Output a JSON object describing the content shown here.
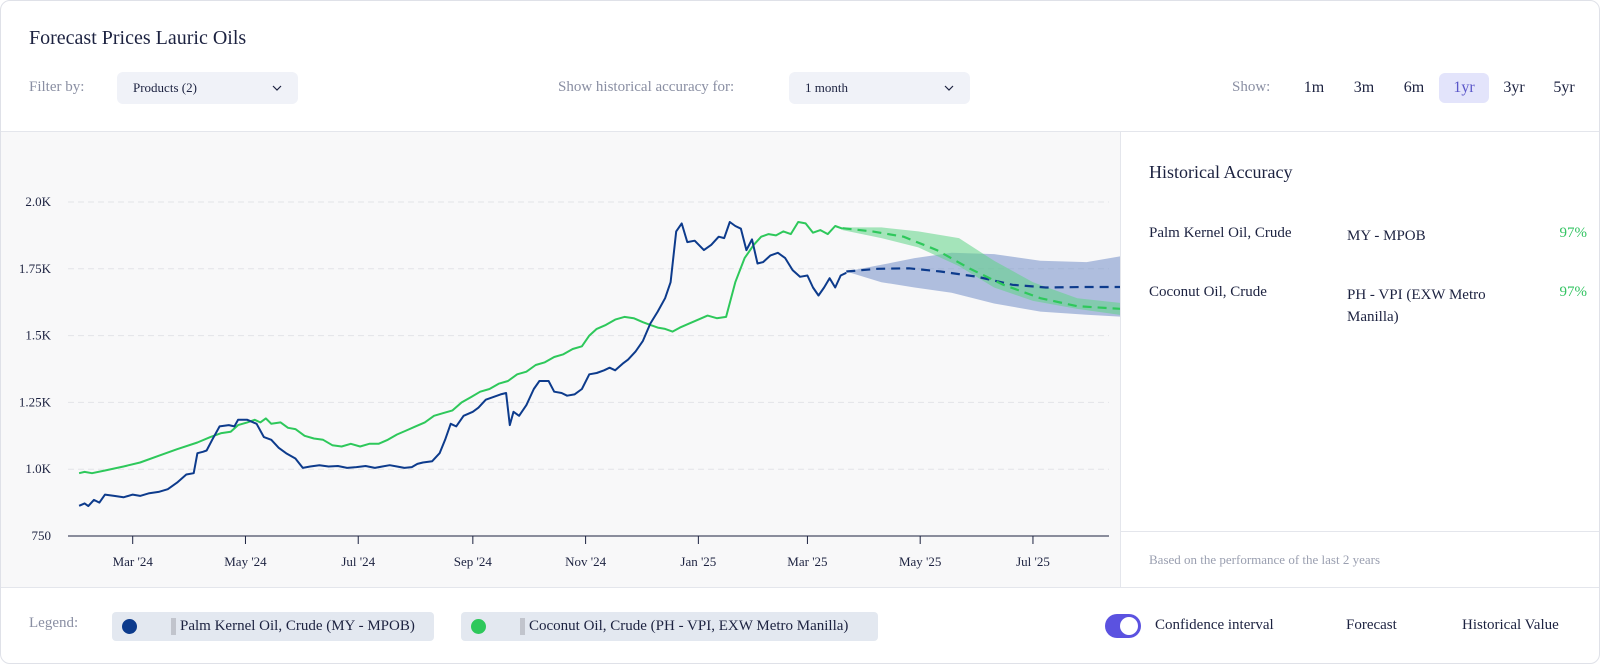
{
  "header": {
    "title": "Forecast Prices Lauric Oils",
    "filter_label": "Filter by:",
    "products_value": "Products (2)",
    "history_label": "Show historical accuracy for:",
    "history_value": "1 month",
    "show_label": "Show:",
    "ranges": [
      "1m",
      "3m",
      "6m",
      "1yr",
      "3yr",
      "5yr"
    ],
    "active_range": "1yr"
  },
  "accuracy": {
    "title": "Historical Accuracy",
    "rows": [
      {
        "name": "Palm Kernel Oil, Crude",
        "source": "MY - MPOB",
        "pct": "97%"
      },
      {
        "name": "Coconut Oil, Crude",
        "source": "PH - VPI (EXW Metro Manilla)",
        "pct": "97%"
      }
    ],
    "note": "Based on the performance of the last 2 years"
  },
  "legend": {
    "label": "Legend:",
    "series": [
      {
        "label": "Palm Kernel Oil, Crude (MY - MPOB)",
        "color": "#0d3b8c"
      },
      {
        "label": "Coconut Oil, Crude (PH - VPI, EXW Metro Manilla)",
        "color": "#2ec85b"
      }
    ],
    "confidence_label": "Confidence interval",
    "confidence_on": true,
    "forecast_label": "Forecast",
    "historical_label": "Historical Value"
  },
  "chart_data": {
    "type": "line",
    "y_ticks": [
      750,
      1000,
      1250,
      1500,
      1750,
      2000
    ],
    "y_tick_labels": [
      "750",
      "1.0K",
      "1.25K",
      "1.5K",
      "1.75K",
      "2.0K"
    ],
    "ylim": [
      750,
      2000
    ],
    "x_ticks": [
      "2024-03-01",
      "2024-05-01",
      "2024-07-01",
      "2024-09-01",
      "2024-11-01",
      "2025-01-01",
      "2025-03-01",
      "2025-05-01",
      "2025-07-01"
    ],
    "x_tick_labels": [
      "Mar '24",
      "May '24",
      "Jul '24",
      "Sep '24",
      "Nov '24",
      "Jan '25",
      "Mar '25",
      "May '25",
      "Jul '25"
    ],
    "xlim": [
      "2024-01-26",
      "2025-08-01"
    ],
    "grid": true,
    "series": [
      {
        "name": "Palm Kernel Oil, Crude (MY - MPOB)",
        "color": "#0d3b8c",
        "historical": [
          [
            "2024-02-01",
            863
          ],
          [
            "2024-02-04",
            872
          ],
          [
            "2024-02-06",
            862
          ],
          [
            "2024-02-09",
            885
          ],
          [
            "2024-02-12",
            875
          ],
          [
            "2024-02-15",
            905
          ],
          [
            "2024-02-20",
            900
          ],
          [
            "2024-02-25",
            895
          ],
          [
            "2024-03-01",
            905
          ],
          [
            "2024-03-05",
            900
          ],
          [
            "2024-03-10",
            910
          ],
          [
            "2024-03-15",
            915
          ],
          [
            "2024-03-20",
            925
          ],
          [
            "2024-03-25",
            950
          ],
          [
            "2024-03-30",
            980
          ],
          [
            "2024-04-03",
            985
          ],
          [
            "2024-04-05",
            1060
          ],
          [
            "2024-04-08",
            1065
          ],
          [
            "2024-04-10",
            1070
          ],
          [
            "2024-04-13",
            1110
          ],
          [
            "2024-04-17",
            1160
          ],
          [
            "2024-04-22",
            1165
          ],
          [
            "2024-04-25",
            1160
          ],
          [
            "2024-04-27",
            1185
          ],
          [
            "2024-05-02",
            1185
          ],
          [
            "2024-05-07",
            1170
          ],
          [
            "2024-05-11",
            1120
          ],
          [
            "2024-05-15",
            1110
          ],
          [
            "2024-05-19",
            1080
          ],
          [
            "2024-05-23",
            1060
          ],
          [
            "2024-05-28",
            1040
          ],
          [
            "2024-06-01",
            1005
          ],
          [
            "2024-06-05",
            1010
          ],
          [
            "2024-06-10",
            1015
          ],
          [
            "2024-06-15",
            1010
          ],
          [
            "2024-06-20",
            1012
          ],
          [
            "2024-06-25",
            1005
          ],
          [
            "2024-06-30",
            1008
          ],
          [
            "2024-07-05",
            1012
          ],
          [
            "2024-07-10",
            1005
          ],
          [
            "2024-07-14",
            1010
          ],
          [
            "2024-07-18",
            1015
          ],
          [
            "2024-07-22",
            1010
          ],
          [
            "2024-07-26",
            1005
          ],
          [
            "2024-07-30",
            1008
          ],
          [
            "2024-08-02",
            1020
          ],
          [
            "2024-08-05",
            1025
          ],
          [
            "2024-08-10",
            1030
          ],
          [
            "2024-08-14",
            1060
          ],
          [
            "2024-08-17",
            1110
          ],
          [
            "2024-08-20",
            1170
          ],
          [
            "2024-08-23",
            1160
          ],
          [
            "2024-08-27",
            1200
          ],
          [
            "2024-09-01",
            1215
          ],
          [
            "2024-09-04",
            1230
          ],
          [
            "2024-09-08",
            1260
          ],
          [
            "2024-09-12",
            1270
          ],
          [
            "2024-09-16",
            1280
          ],
          [
            "2024-09-19",
            1285
          ],
          [
            "2024-09-21",
            1165
          ],
          [
            "2024-09-23",
            1215
          ],
          [
            "2024-09-26",
            1200
          ],
          [
            "2024-09-30",
            1240
          ],
          [
            "2024-10-04",
            1300
          ],
          [
            "2024-10-07",
            1330
          ],
          [
            "2024-10-12",
            1330
          ],
          [
            "2024-10-15",
            1290
          ],
          [
            "2024-10-19",
            1285
          ],
          [
            "2024-10-22",
            1275
          ],
          [
            "2024-10-26",
            1280
          ],
          [
            "2024-10-30",
            1300
          ],
          [
            "2024-11-03",
            1355
          ],
          [
            "2024-11-07",
            1360
          ],
          [
            "2024-11-11",
            1370
          ],
          [
            "2024-11-14",
            1380
          ],
          [
            "2024-11-17",
            1370
          ],
          [
            "2024-11-21",
            1395
          ],
          [
            "2024-11-24",
            1410
          ],
          [
            "2024-11-28",
            1440
          ],
          [
            "2024-12-02",
            1480
          ],
          [
            "2024-12-06",
            1545
          ],
          [
            "2024-12-10",
            1590
          ],
          [
            "2024-12-14",
            1640
          ],
          [
            "2024-12-17",
            1700
          ],
          [
            "2024-12-20",
            1890
          ],
          [
            "2024-12-23",
            1920
          ],
          [
            "2024-12-26",
            1850
          ],
          [
            "2024-12-30",
            1855
          ],
          [
            "2025-01-04",
            1820
          ],
          [
            "2025-01-08",
            1840
          ],
          [
            "2025-01-12",
            1870
          ],
          [
            "2025-01-15",
            1865
          ],
          [
            "2025-01-18",
            1925
          ],
          [
            "2025-01-21",
            1910
          ],
          [
            "2025-01-24",
            1900
          ],
          [
            "2025-01-27",
            1820
          ],
          [
            "2025-01-30",
            1860
          ],
          [
            "2025-02-02",
            1770
          ],
          [
            "2025-02-05",
            1775
          ],
          [
            "2025-02-09",
            1800
          ],
          [
            "2025-02-13",
            1810
          ],
          [
            "2025-02-17",
            1790
          ],
          [
            "2025-02-21",
            1745
          ],
          [
            "2025-02-25",
            1720
          ],
          [
            "2025-03-01",
            1725
          ],
          [
            "2025-03-04",
            1680
          ],
          [
            "2025-03-07",
            1650
          ],
          [
            "2025-03-10",
            1680
          ],
          [
            "2025-03-13",
            1715
          ],
          [
            "2025-03-16",
            1680
          ],
          [
            "2025-03-19",
            1725
          ],
          [
            "2025-03-22",
            1735
          ]
        ],
        "forecast": [
          [
            "2025-03-22",
            1740
          ],
          [
            "2025-04-08",
            1750
          ],
          [
            "2025-04-25",
            1752
          ],
          [
            "2025-05-12",
            1740
          ],
          [
            "2025-06-01",
            1720
          ],
          [
            "2025-06-20",
            1690
          ],
          [
            "2025-07-08",
            1680
          ],
          [
            "2025-07-28",
            1682
          ],
          [
            "2025-08-18",
            1682
          ]
        ],
        "ci_upper": [
          [
            "2025-03-22",
            1740
          ],
          [
            "2025-04-10",
            1765
          ],
          [
            "2025-04-28",
            1790
          ],
          [
            "2025-05-18",
            1810
          ],
          [
            "2025-06-10",
            1805
          ],
          [
            "2025-07-05",
            1780
          ],
          [
            "2025-07-30",
            1775
          ],
          [
            "2025-08-20",
            1800
          ]
        ],
        "ci_lower": [
          [
            "2025-03-22",
            1740
          ],
          [
            "2025-04-10",
            1700
          ],
          [
            "2025-04-28",
            1680
          ],
          [
            "2025-05-18",
            1660
          ],
          [
            "2025-06-10",
            1620
          ],
          [
            "2025-07-05",
            1590
          ],
          [
            "2025-07-30",
            1578
          ],
          [
            "2025-08-20",
            1570
          ]
        ]
      },
      {
        "name": "Coconut Oil, Crude (PH - VPI, EXW Metro Manilla)",
        "color": "#2ec85b",
        "historical": [
          [
            "2024-02-01",
            985
          ],
          [
            "2024-02-04",
            990
          ],
          [
            "2024-02-08",
            985
          ],
          [
            "2024-02-15",
            995
          ],
          [
            "2024-02-25",
            1010
          ],
          [
            "2024-03-05",
            1025
          ],
          [
            "2024-03-15",
            1050
          ],
          [
            "2024-03-25",
            1075
          ],
          [
            "2024-04-05",
            1100
          ],
          [
            "2024-04-12",
            1120
          ],
          [
            "2024-04-18",
            1135
          ],
          [
            "2024-04-23",
            1140
          ],
          [
            "2024-04-27",
            1165
          ],
          [
            "2024-05-02",
            1175
          ],
          [
            "2024-05-06",
            1185
          ],
          [
            "2024-05-09",
            1175
          ],
          [
            "2024-05-12",
            1190
          ],
          [
            "2024-05-15",
            1170
          ],
          [
            "2024-05-20",
            1175
          ],
          [
            "2024-05-24",
            1155
          ],
          [
            "2024-05-28",
            1150
          ],
          [
            "2024-06-02",
            1125
          ],
          [
            "2024-06-07",
            1115
          ],
          [
            "2024-06-12",
            1110
          ],
          [
            "2024-06-17",
            1090
          ],
          [
            "2024-06-22",
            1085
          ],
          [
            "2024-06-27",
            1095
          ],
          [
            "2024-07-02",
            1085
          ],
          [
            "2024-07-07",
            1095
          ],
          [
            "2024-07-12",
            1095
          ],
          [
            "2024-07-17",
            1110
          ],
          [
            "2024-07-22",
            1130
          ],
          [
            "2024-07-27",
            1145
          ],
          [
            "2024-08-01",
            1160
          ],
          [
            "2024-08-06",
            1175
          ],
          [
            "2024-08-11",
            1200
          ],
          [
            "2024-08-16",
            1210
          ],
          [
            "2024-08-21",
            1220
          ],
          [
            "2024-08-26",
            1250
          ],
          [
            "2024-08-31",
            1270
          ],
          [
            "2024-09-05",
            1290
          ],
          [
            "2024-09-10",
            1300
          ],
          [
            "2024-09-15",
            1320
          ],
          [
            "2024-09-20",
            1330
          ],
          [
            "2024-09-25",
            1355
          ],
          [
            "2024-09-30",
            1365
          ],
          [
            "2024-10-05",
            1390
          ],
          [
            "2024-10-10",
            1400
          ],
          [
            "2024-10-15",
            1420
          ],
          [
            "2024-10-20",
            1430
          ],
          [
            "2024-10-25",
            1450
          ],
          [
            "2024-10-30",
            1460
          ],
          [
            "2024-11-03",
            1500
          ],
          [
            "2024-11-07",
            1525
          ],
          [
            "2024-11-12",
            1540
          ],
          [
            "2024-11-17",
            1560
          ],
          [
            "2024-11-22",
            1570
          ],
          [
            "2024-11-27",
            1565
          ],
          [
            "2024-12-02",
            1550
          ],
          [
            "2024-12-06",
            1540
          ],
          [
            "2024-12-10",
            1530
          ],
          [
            "2024-12-14",
            1525
          ],
          [
            "2024-12-18",
            1515
          ],
          [
            "2024-12-22",
            1530
          ],
          [
            "2024-12-27",
            1545
          ],
          [
            "2025-01-01",
            1560
          ],
          [
            "2025-01-06",
            1575
          ],
          [
            "2025-01-11",
            1565
          ],
          [
            "2025-01-16",
            1570
          ],
          [
            "2025-01-21",
            1700
          ],
          [
            "2025-01-26",
            1790
          ],
          [
            "2025-01-31",
            1840
          ],
          [
            "2025-02-04",
            1870
          ],
          [
            "2025-02-08",
            1880
          ],
          [
            "2025-02-12",
            1875
          ],
          [
            "2025-02-16",
            1890
          ],
          [
            "2025-02-20",
            1880
          ],
          [
            "2025-02-24",
            1925
          ],
          [
            "2025-02-28",
            1920
          ],
          [
            "2025-03-04",
            1885
          ],
          [
            "2025-03-08",
            1895
          ],
          [
            "2025-03-12",
            1880
          ],
          [
            "2025-03-16",
            1910
          ],
          [
            "2025-03-20",
            1900
          ]
        ],
        "forecast": [
          [
            "2025-03-20",
            1902
          ],
          [
            "2025-04-05",
            1890
          ],
          [
            "2025-04-22",
            1870
          ],
          [
            "2025-05-10",
            1820
          ],
          [
            "2025-05-28",
            1750
          ],
          [
            "2025-06-15",
            1690
          ],
          [
            "2025-07-05",
            1640
          ],
          [
            "2025-07-25",
            1610
          ],
          [
            "2025-08-18",
            1600
          ]
        ],
        "ci_upper": [
          [
            "2025-03-20",
            1905
          ],
          [
            "2025-04-10",
            1905
          ],
          [
            "2025-04-30",
            1890
          ],
          [
            "2025-05-22",
            1865
          ],
          [
            "2025-06-10",
            1780
          ],
          [
            "2025-07-01",
            1700
          ],
          [
            "2025-07-25",
            1640
          ],
          [
            "2025-08-20",
            1620
          ]
        ],
        "ci_lower": [
          [
            "2025-03-20",
            1895
          ],
          [
            "2025-04-10",
            1865
          ],
          [
            "2025-04-30",
            1830
          ],
          [
            "2025-05-22",
            1760
          ],
          [
            "2025-06-10",
            1680
          ],
          [
            "2025-07-01",
            1630
          ],
          [
            "2025-07-25",
            1600
          ],
          [
            "2025-08-20",
            1575
          ]
        ]
      }
    ]
  }
}
